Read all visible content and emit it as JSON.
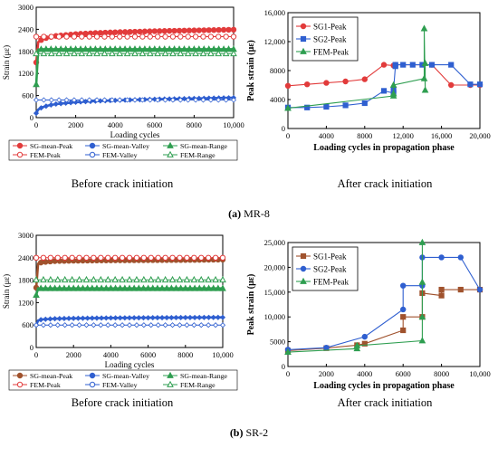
{
  "colors": {
    "red": "#e23b3b",
    "blue": "#2f5fd0",
    "green": "#2e9e50",
    "brown": "#a0522d",
    "axis": "#000000"
  },
  "panel_labels": {
    "a_letter": "(a)",
    "a_name": " MR-8",
    "b_letter": "(b)",
    "b_name": " SR-2"
  },
  "captions": {
    "a_left": "Before crack initiation",
    "a_right": "After crack initiation",
    "b_left": "Before crack initiation",
    "b_right": "After crack initiation"
  },
  "chart_data": [
    {
      "type": "line",
      "panel": "a-left",
      "xlabel": "Loading cycles",
      "ylabel": "Strain (με)",
      "xlim": [
        0,
        10000
      ],
      "ylim": [
        0,
        3000
      ],
      "xticks": [
        0,
        2000,
        4000,
        6000,
        8000,
        10000
      ],
      "xtick_labels": [
        "0",
        "2000",
        "4000",
        "6000",
        "8000",
        "10,000"
      ],
      "yticks": [
        0,
        600,
        1200,
        1800,
        2400,
        3000
      ],
      "ytick_labels": [
        "0",
        "600",
        "1200",
        "1800",
        "2400",
        "3000"
      ],
      "legend_position": "bottom",
      "legend": [
        "SG-mean-Peak",
        "SG-mean-Valley",
        "SG-mean-Range",
        "FEM-Peak",
        "FEM-Valley",
        "FEM-Range"
      ],
      "series": [
        {
          "name": "SG-mean-Peak",
          "color": "red",
          "style": "filled",
          "x": [
            0,
            100,
            300,
            600,
            1000,
            2000,
            3000,
            4000,
            5000,
            6000,
            7000,
            8000,
            9000,
            10000
          ],
          "y": [
            1500,
            2050,
            2130,
            2180,
            2220,
            2270,
            2300,
            2320,
            2335,
            2350,
            2360,
            2370,
            2380,
            2390
          ]
        },
        {
          "name": "SG-mean-Valley",
          "color": "blue",
          "style": "filled",
          "x": [
            0,
            100,
            300,
            600,
            1000,
            2000,
            3000,
            4000,
            5000,
            6000,
            7000,
            8000,
            9000,
            10000
          ],
          "y": [
            120,
            220,
            280,
            330,
            370,
            420,
            450,
            470,
            485,
            500,
            510,
            520,
            530,
            540
          ]
        },
        {
          "name": "SG-mean-Range",
          "color": "green",
          "style": "filled",
          "x": [
            0,
            100,
            300,
            1000,
            2000,
            4000,
            6000,
            8000,
            10000
          ],
          "y": [
            900,
            1850,
            1860,
            1860,
            1860,
            1860,
            1860,
            1860,
            1860
          ]
        },
        {
          "name": "FEM-Peak",
          "color": "red",
          "style": "open",
          "x": [
            0,
            10000
          ],
          "y": [
            2200,
            2200
          ]
        },
        {
          "name": "FEM-Valley",
          "color": "blue",
          "style": "open",
          "x": [
            0,
            10000
          ],
          "y": [
            480,
            480
          ]
        },
        {
          "name": "FEM-Range",
          "color": "green",
          "style": "open",
          "x": [
            0,
            10000
          ],
          "y": [
            1740,
            1740
          ]
        }
      ]
    },
    {
      "type": "line",
      "panel": "a-right",
      "xlabel": "Loading cycles in propagation phase",
      "ylabel": "Peak strain (με)",
      "xlim": [
        0,
        20000
      ],
      "ylim": [
        0,
        16000
      ],
      "xticks": [
        0,
        4000,
        8000,
        12000,
        16000,
        20000
      ],
      "xtick_labels": [
        "0",
        "4000",
        "8000",
        "12,000",
        "16,000",
        "20,000"
      ],
      "yticks": [
        0,
        4000,
        8000,
        12000,
        16000
      ],
      "ytick_labels": [
        "0",
        "4000",
        "8000",
        "12,000",
        "16,000"
      ],
      "legend_position": "top-left",
      "legend": [
        "SG1-Peak",
        "SG2-Peak",
        "FEM-Peak"
      ],
      "series": [
        {
          "name": "SG1-Peak",
          "color": "red",
          "marker": "circle",
          "x": [
            0,
            2000,
            4000,
            6000,
            8000,
            10000,
            11000,
            11200,
            15000,
            17000,
            19000,
            20000
          ],
          "y": [
            5900,
            6100,
            6300,
            6500,
            6800,
            8800,
            8700,
            8800,
            8800,
            6000,
            6000,
            6000
          ]
        },
        {
          "name": "SG2-Peak",
          "color": "blue",
          "marker": "square",
          "x": [
            0,
            2000,
            4000,
            6000,
            8000,
            10000,
            11000,
            11000,
            11200,
            11200,
            12000,
            13000,
            14000,
            15000,
            17000,
            19000,
            20000
          ],
          "y": [
            2900,
            2900,
            3000,
            3200,
            3500,
            5200,
            4900,
            5300,
            8600,
            8800,
            8800,
            8800,
            8800,
            8800,
            8800,
            6100,
            6100
          ]
        },
        {
          "name": "FEM-Peak",
          "color": "green",
          "marker": "triangle",
          "x": [
            0,
            11000,
            11000,
            11000,
            14200,
            14200,
            14300,
            14300
          ],
          "y": [
            2800,
            4500,
            4800,
            6000,
            6900,
            13800,
            5300,
            9000
          ]
        }
      ]
    },
    {
      "type": "line",
      "panel": "b-left",
      "xlabel": "Loading cycles",
      "ylabel": "Strain (με)",
      "xlim": [
        0,
        10000
      ],
      "ylim": [
        0,
        3000
      ],
      "xticks": [
        0,
        2000,
        4000,
        6000,
        8000,
        10000
      ],
      "xtick_labels": [
        "0",
        "2000",
        "4000",
        "6000",
        "8000",
        "10,000"
      ],
      "yticks": [
        0,
        600,
        1200,
        1800,
        2400,
        3000
      ],
      "ytick_labels": [
        "0",
        "600",
        "1200",
        "1800",
        "2400",
        "3000"
      ],
      "legend_position": "bottom",
      "legend": [
        "SG-mean-Peak",
        "SG-mean-Valley",
        "SG-mean-Range",
        "FEM-Peak",
        "FEM-Valley",
        "FEM-Range"
      ],
      "series": [
        {
          "name": "SG-mean-Peak",
          "color": "brown",
          "style": "filled",
          "x": [
            0,
            100,
            300,
            1000,
            2000,
            4000,
            6000,
            8000,
            10000
          ],
          "y": [
            1600,
            2240,
            2280,
            2310,
            2320,
            2330,
            2335,
            2340,
            2350
          ]
        },
        {
          "name": "SG-mean-Valley",
          "color": "blue",
          "style": "filled",
          "x": [
            0,
            100,
            300,
            1000,
            2000,
            4000,
            6000,
            8000,
            10000
          ],
          "y": [
            600,
            720,
            750,
            770,
            780,
            790,
            795,
            800,
            805
          ]
        },
        {
          "name": "SG-mean-Range",
          "color": "green",
          "style": "filled",
          "x": [
            0,
            100,
            300,
            1000,
            2000,
            4000,
            6000,
            8000,
            10000
          ],
          "y": [
            1400,
            1580,
            1580,
            1580,
            1580,
            1580,
            1580,
            1580,
            1580
          ]
        },
        {
          "name": "FEM-Peak",
          "color": "red",
          "style": "open",
          "x": [
            0,
            10000
          ],
          "y": [
            2400,
            2400
          ]
        },
        {
          "name": "FEM-Valley",
          "color": "blue",
          "style": "open",
          "x": [
            0,
            10000
          ],
          "y": [
            600,
            600
          ]
        },
        {
          "name": "FEM-Range",
          "color": "green",
          "style": "open",
          "x": [
            0,
            10000
          ],
          "y": [
            1810,
            1810
          ]
        }
      ]
    },
    {
      "type": "line",
      "panel": "b-right",
      "xlabel": "Loading cycles in propagation phase",
      "ylabel": "Peak strain (με)",
      "xlim": [
        0,
        10000
      ],
      "ylim": [
        0,
        25000
      ],
      "xticks": [
        0,
        2000,
        4000,
        6000,
        8000,
        10000
      ],
      "xtick_labels": [
        "0",
        "2000",
        "4000",
        "6000",
        "8000",
        "10,000"
      ],
      "yticks": [
        0,
        5000,
        10000,
        15000,
        20000,
        25000
      ],
      "ytick_labels": [
        "0",
        "5000",
        "10,000",
        "15,000",
        "20,000",
        "25,000"
      ],
      "legend_position": "top-left",
      "legend": [
        "SG1-Peak",
        "SG2-Peak",
        "FEM-Peak"
      ],
      "series": [
        {
          "name": "SG1-Peak",
          "color": "brown",
          "marker": "square",
          "x": [
            0,
            2000,
            3600,
            4000,
            6000,
            6000,
            7000,
            7000,
            8000,
            8000,
            9000,
            10000
          ],
          "y": [
            3200,
            3700,
            4300,
            4600,
            7300,
            10000,
            10000,
            14800,
            14300,
            15500,
            15500,
            15500
          ]
        },
        {
          "name": "SG2-Peak",
          "color": "blue",
          "marker": "circle",
          "x": [
            0,
            2000,
            4000,
            6000,
            6000,
            7000,
            7000,
            8000,
            9000,
            10000
          ],
          "y": [
            3400,
            3800,
            6000,
            11500,
            16300,
            16300,
            22000,
            22000,
            22000,
            15500
          ]
        },
        {
          "name": "FEM-Peak",
          "color": "green",
          "marker": "triangle",
          "x": [
            0,
            3600,
            3600,
            7000,
            7000,
            7000,
            7000
          ],
          "y": [
            2900,
            3600,
            4200,
            5200,
            25000,
            10000,
            17000
          ]
        }
      ]
    }
  ]
}
